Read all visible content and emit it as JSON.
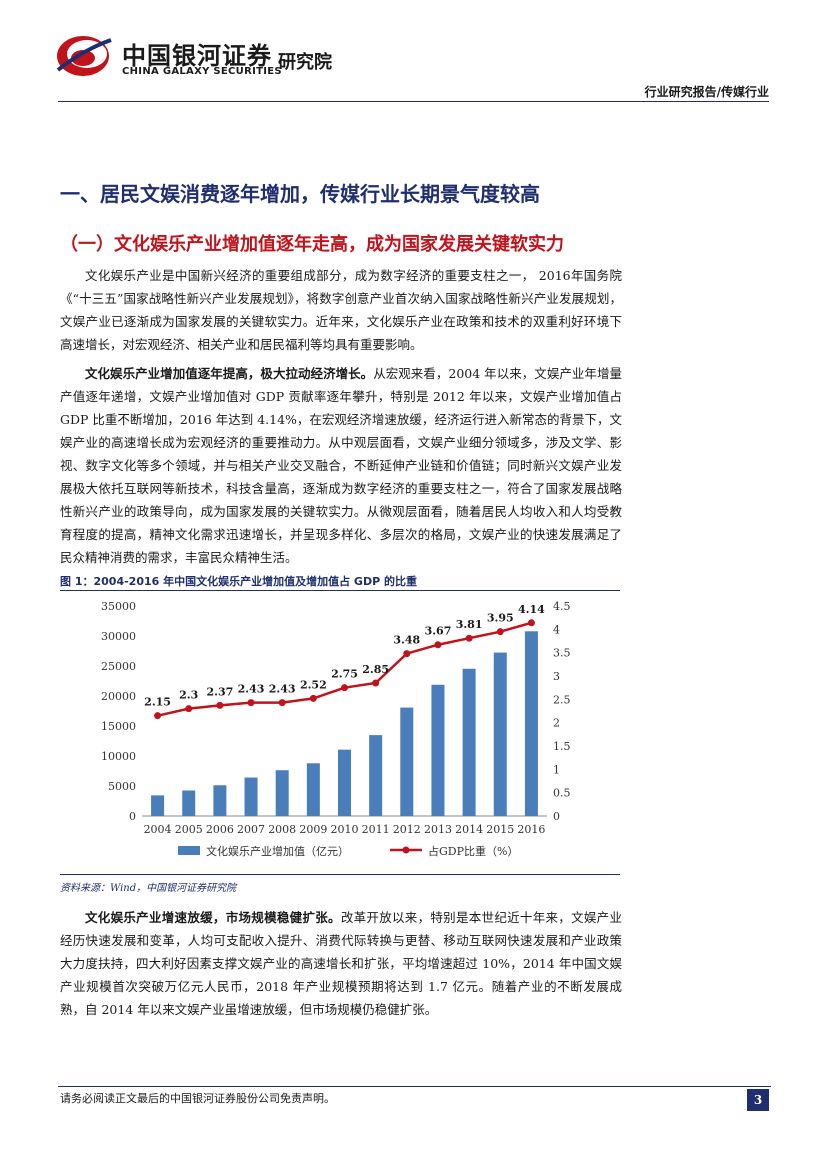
{
  "header": {
    "logo_cn": "中国银河证券",
    "logo_en": "CHINA GALAXY SECURITIES",
    "logo_sub": "研究院",
    "category": "行业研究报告/传媒行业"
  },
  "section": {
    "h1": "一、居民文娱消费逐年增加，传媒行业长期景气度较高",
    "h2": "（一）文化娱乐产业增加值逐年走高，成为国家发展关键软实力"
  },
  "paragraphs": {
    "p1": "文化娱乐产业是中国新兴经济的重要组成部分，成为数字经济的重要支柱之一， 2016年国务院《“十三五”国家战略性新兴产业发展规划》，将数字创意产业首次纳入国家战略性新兴产业发展规划，文娱产业已逐渐成为国家发展的关键软实力。近年来，文化娱乐产业在政策和技术的双重利好环境下高速增长，对宏观经济、相关产业和居民福利等均具有重要影响。",
    "p2_bold": "文化娱乐产业增加值逐年提高，极大拉动经济增长。",
    "p2_text": "从宏观来看，2004 年以来，文娱产业年增量产值逐年递增，文娱产业增加值对 GDP 贡献率逐年攀升，特别是 2012 年以来，文娱产业增加值占 GDP 比重不断增加，2016 年达到 4.14%，在宏观经济增速放缓，经济运行进入新常态的背景下，文娱产业的高速增长成为宏观经济的重要推动力。从中观层面看，文娱产业细分领域多，涉及文学、影视、数字文化等多个领域，并与相关产业交叉融合，不断延伸产业链和价值链；同时新兴文娱产业发展极大依托互联网等新技术，科技含量高，逐渐成为数字经济的重要支柱之一，符合了国家发展战略性新兴产业的政策导向，成为国家发展的关键软实力。从微观层面看，随着居民人均收入和人均受教育程度的提高，精神文化需求迅速增长，并呈现多样化、多层次的格局，文娱产业的快速发展满足了民众精神消费的需求，丰富民众精神生活。",
    "p3_bold": "文化娱乐产业增速放缓，市场规模稳健扩张。",
    "p3_text": "改革开放以来，特别是本世纪近十年来，文娱产业经历快速发展和变革，人均可支配收入提升、消费代际转换与更替、移动互联网快速发展和产业政策大力度扶持，四大利好因素支撑文娱产业的高速增长和扩张，平均增速超过 10%，2014 年中国文娱产业规模首次突破万亿元人民币，2018 年产业规模预期将达到 1.7 亿元。随着产业的不断发展成熟，自 2014 年以来文娱产业虽增速放缓，但市场规模仍稳健扩张。"
  },
  "figure": {
    "title": "图 1：2004-2016 年中国文化娱乐产业增加值及增加值占 GDP 的比重",
    "source": "资料来源：Wind，中国银河证券研究院"
  },
  "chart_data": {
    "type": "bar+line",
    "categories": [
      "2004",
      "2005",
      "2006",
      "2007",
      "2008",
      "2009",
      "2010",
      "2011",
      "2012",
      "2013",
      "2014",
      "2015",
      "2016"
    ],
    "series": [
      {
        "name": "文化娱乐产业增加值（亿元）",
        "type": "bar",
        "axis": "left",
        "values": [
          3440,
          4253,
          5123,
          6412,
          7630,
          8786,
          11052,
          13479,
          18071,
          21870,
          24538,
          27235,
          30785
        ]
      },
      {
        "name": "占GDP比重（%）",
        "type": "line",
        "axis": "right",
        "values": [
          2.15,
          2.3,
          2.37,
          2.43,
          2.43,
          2.52,
          2.75,
          2.85,
          3.48,
          3.67,
          3.81,
          3.95,
          4.14
        ]
      }
    ],
    "left_ticks": [
      "0",
      "5000",
      "10000",
      "15000",
      "20000",
      "25000",
      "30000",
      "35000"
    ],
    "right_ticks": [
      "0",
      "0.5",
      "1",
      "1.5",
      "2",
      "2.5",
      "3",
      "3.5",
      "4",
      "4.5"
    ],
    "ylim_left": [
      0,
      35000
    ],
    "ylim_right": [
      0,
      4.5
    ],
    "legend": [
      "文化娱乐产业增加值（亿元）",
      "占GDP比重（%）"
    ],
    "legend_position": "bottom",
    "colors": {
      "bar": "#4a7ebb",
      "line": "#c0131c"
    }
  },
  "footer": {
    "disclaimer": "请务必阅读正文最后的中国银河证券股份公司免责声明。",
    "page": "3"
  },
  "colors": {
    "navy": "#1f2e6e",
    "red": "#c0131c"
  }
}
